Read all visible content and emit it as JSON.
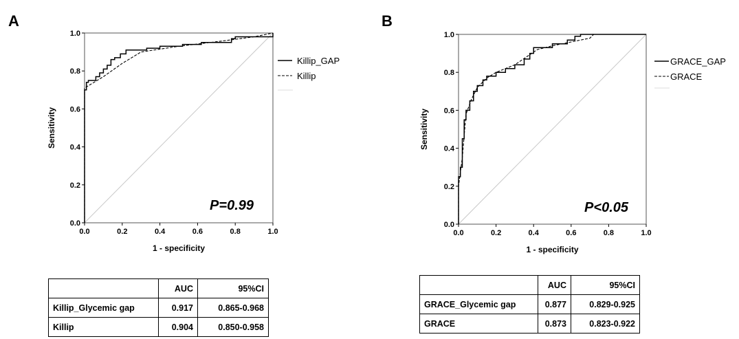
{
  "chart_data": [
    {
      "type": "line",
      "panel_letter": "A",
      "xlabel": "1 - specificity",
      "ylabel": "Sensitivity",
      "xlim": [
        0,
        1
      ],
      "ylim": [
        0,
        1
      ],
      "xticks": [
        "0.0",
        "0.2",
        "0.4",
        "0.6",
        "0.8",
        "1.0"
      ],
      "yticks": [
        "0.0",
        "0.2",
        "0.4",
        "0.6",
        "0.8",
        "1.0"
      ],
      "annotation": "P=0.99",
      "legend_position": "right",
      "series": [
        {
          "name": "Killip_GAP",
          "style": "solid",
          "points": [
            [
              0,
              0
            ],
            [
              0,
              0.7
            ],
            [
              0.01,
              0.7
            ],
            [
              0.01,
              0.74
            ],
            [
              0.02,
              0.74
            ],
            [
              0.02,
              0.75
            ],
            [
              0.06,
              0.75
            ],
            [
              0.06,
              0.77
            ],
            [
              0.08,
              0.77
            ],
            [
              0.08,
              0.79
            ],
            [
              0.1,
              0.79
            ],
            [
              0.1,
              0.81
            ],
            [
              0.12,
              0.81
            ],
            [
              0.12,
              0.83
            ],
            [
              0.14,
              0.83
            ],
            [
              0.14,
              0.86
            ],
            [
              0.16,
              0.86
            ],
            [
              0.16,
              0.87
            ],
            [
              0.19,
              0.87
            ],
            [
              0.19,
              0.89
            ],
            [
              0.22,
              0.89
            ],
            [
              0.22,
              0.91
            ],
            [
              0.33,
              0.91
            ],
            [
              0.33,
              0.92
            ],
            [
              0.4,
              0.92
            ],
            [
              0.4,
              0.93
            ],
            [
              0.52,
              0.93
            ],
            [
              0.52,
              0.94
            ],
            [
              0.62,
              0.94
            ],
            [
              0.62,
              0.95
            ],
            [
              0.78,
              0.95
            ],
            [
              0.78,
              0.97
            ],
            [
              0.8,
              0.97
            ],
            [
              0.8,
              0.98
            ],
            [
              1,
              0.98
            ],
            [
              1,
              1
            ]
          ]
        },
        {
          "name": "Killip",
          "style": "dashed",
          "points": [
            [
              0,
              0
            ],
            [
              0,
              0.71
            ],
            [
              0.05,
              0.74
            ],
            [
              0.1,
              0.77
            ],
            [
              0.2,
              0.84
            ],
            [
              0.3,
              0.9
            ],
            [
              0.5,
              0.93
            ],
            [
              0.75,
              0.96
            ],
            [
              0.9,
              0.98
            ],
            [
              1,
              1
            ]
          ]
        }
      ]
    },
    {
      "type": "line",
      "panel_letter": "B",
      "xlabel": "1 - specificity",
      "ylabel": "Sensitivity",
      "xlim": [
        0,
        1
      ],
      "ylim": [
        0,
        1
      ],
      "xticks": [
        "0.0",
        "0.2",
        "0.4",
        "0.6",
        "0.8",
        "1.0"
      ],
      "yticks": [
        "0.0",
        "0.2",
        "0.4",
        "0.6",
        "0.8",
        "1.0"
      ],
      "annotation": "P<0.05",
      "legend_position": "right",
      "series": [
        {
          "name": "GRACE_GAP",
          "style": "solid",
          "points": [
            [
              0,
              0
            ],
            [
              0,
              0.25
            ],
            [
              0.01,
              0.25
            ],
            [
              0.01,
              0.3
            ],
            [
              0.02,
              0.3
            ],
            [
              0.02,
              0.45
            ],
            [
              0.03,
              0.45
            ],
            [
              0.03,
              0.55
            ],
            [
              0.04,
              0.55
            ],
            [
              0.04,
              0.6
            ],
            [
              0.06,
              0.6
            ],
            [
              0.06,
              0.65
            ],
            [
              0.08,
              0.65
            ],
            [
              0.08,
              0.7
            ],
            [
              0.1,
              0.7
            ],
            [
              0.1,
              0.73
            ],
            [
              0.13,
              0.73
            ],
            [
              0.13,
              0.76
            ],
            [
              0.15,
              0.76
            ],
            [
              0.15,
              0.78
            ],
            [
              0.2,
              0.78
            ],
            [
              0.2,
              0.8
            ],
            [
              0.25,
              0.8
            ],
            [
              0.25,
              0.82
            ],
            [
              0.3,
              0.82
            ],
            [
              0.3,
              0.84
            ],
            [
              0.35,
              0.84
            ],
            [
              0.35,
              0.87
            ],
            [
              0.38,
              0.87
            ],
            [
              0.38,
              0.9
            ],
            [
              0.4,
              0.9
            ],
            [
              0.4,
              0.93
            ],
            [
              0.5,
              0.93
            ],
            [
              0.5,
              0.95
            ],
            [
              0.58,
              0.95
            ],
            [
              0.58,
              0.97
            ],
            [
              0.62,
              0.97
            ],
            [
              0.62,
              0.99
            ],
            [
              0.65,
              0.99
            ],
            [
              0.65,
              1
            ],
            [
              1,
              1
            ]
          ]
        },
        {
          "name": "GRACE",
          "style": "dashed",
          "points": [
            [
              0,
              0
            ],
            [
              0,
              0.2
            ],
            [
              0.02,
              0.35
            ],
            [
              0.04,
              0.58
            ],
            [
              0.07,
              0.66
            ],
            [
              0.1,
              0.72
            ],
            [
              0.15,
              0.77
            ],
            [
              0.2,
              0.8
            ],
            [
              0.3,
              0.84
            ],
            [
              0.36,
              0.88
            ],
            [
              0.42,
              0.92
            ],
            [
              0.5,
              0.94
            ],
            [
              0.6,
              0.96
            ],
            [
              0.7,
              0.98
            ],
            [
              0.72,
              1
            ],
            [
              1,
              1
            ]
          ]
        }
      ]
    }
  ],
  "tables": [
    {
      "headers": [
        "",
        "AUC",
        "95%CI"
      ],
      "rows": [
        [
          "Killip_Glycemic gap",
          "0.917",
          "0.865-0.968"
        ],
        [
          "Killip",
          "0.904",
          "0.850-0.958"
        ]
      ]
    },
    {
      "headers": [
        "",
        "AUC",
        "95%CI"
      ],
      "rows": [
        [
          "GRACE_Glycemic gap",
          "0.877",
          "0.829-0.925"
        ],
        [
          "GRACE",
          "0.873",
          "0.823-0.922"
        ]
      ]
    }
  ]
}
